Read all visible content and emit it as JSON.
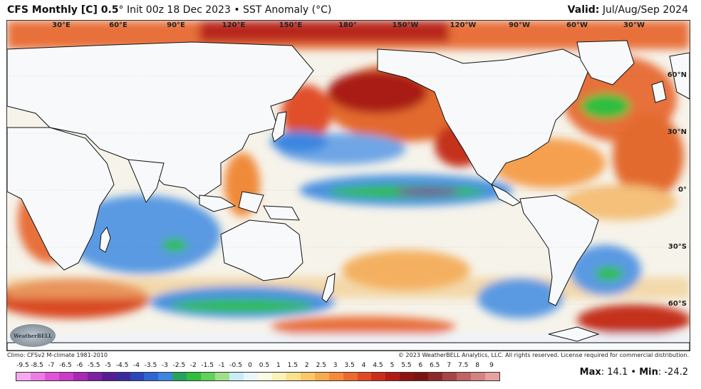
{
  "header": {
    "model": "CFS Monthly [C] 0.5",
    "degree": "°",
    "init": "Init 00z 18 Dec 2023",
    "bullet": "•",
    "field": "SST Anomaly (",
    "field_unit": "°C)",
    "valid_label": "Valid:",
    "valid_value": "Jul/Aug/Sep 2024"
  },
  "lon_labels": [
    "30°E",
    "60°E",
    "90°E",
    "120°E",
    "150°E",
    "180°",
    "150°W",
    "120°W",
    "90°W",
    "60°W",
    "30°W"
  ],
  "lat_labels": [
    "60°N",
    "30°N",
    "0°",
    "30°S",
    "60°S"
  ],
  "logo_text": "WeatherBELL",
  "footer": {
    "climo": "Climo: CFSv2 M-climate 1981-2010",
    "copyright": "© 2023 WeatherBELL Analytics, LLC. All rights reserved. License required for commercial distribution."
  },
  "colorbar": {
    "labels": [
      "-9.5",
      "-8.5",
      "-7",
      "-6.5",
      "-6",
      "-5.5",
      "-5",
      "-4.5",
      "-4",
      "-3.5",
      "-3",
      "-2.5",
      "-2",
      "-1.5",
      "-1",
      "-0.5",
      "0",
      "0.5",
      "1",
      "1.5",
      "2",
      "2.5",
      "3",
      "3.5",
      "4",
      "4.5",
      "5",
      "5.5",
      "6",
      "6.5",
      "7",
      "7.5",
      "8",
      "9"
    ],
    "colors": [
      "#f6a8f0",
      "#ec7ce6",
      "#e054d8",
      "#c93cc6",
      "#a728b4",
      "#7d20a2",
      "#561c94",
      "#3b2a9b",
      "#2b46b8",
      "#2f66d2",
      "#3a86e0",
      "#26a35a",
      "#2fbe3f",
      "#5fd25a",
      "#9ee08a",
      "#c9edf8",
      "#eaf6fd",
      "#fbfbe0",
      "#fcf1b6",
      "#fde08a",
      "#fcc768",
      "#f9aa4e",
      "#f48a3a",
      "#ec6a2c",
      "#e04a22",
      "#cc2c1a",
      "#b01c14",
      "#8e1410",
      "#7a1412",
      "#8c2a2a",
      "#a64646",
      "#bf6464",
      "#d48282",
      "#e6a0a0"
    ]
  },
  "stats": {
    "max_label": "Max",
    "max_value": ": 14.1",
    "bullet": "•",
    "min_label": "Min",
    "min_value": ": -24.2"
  }
}
